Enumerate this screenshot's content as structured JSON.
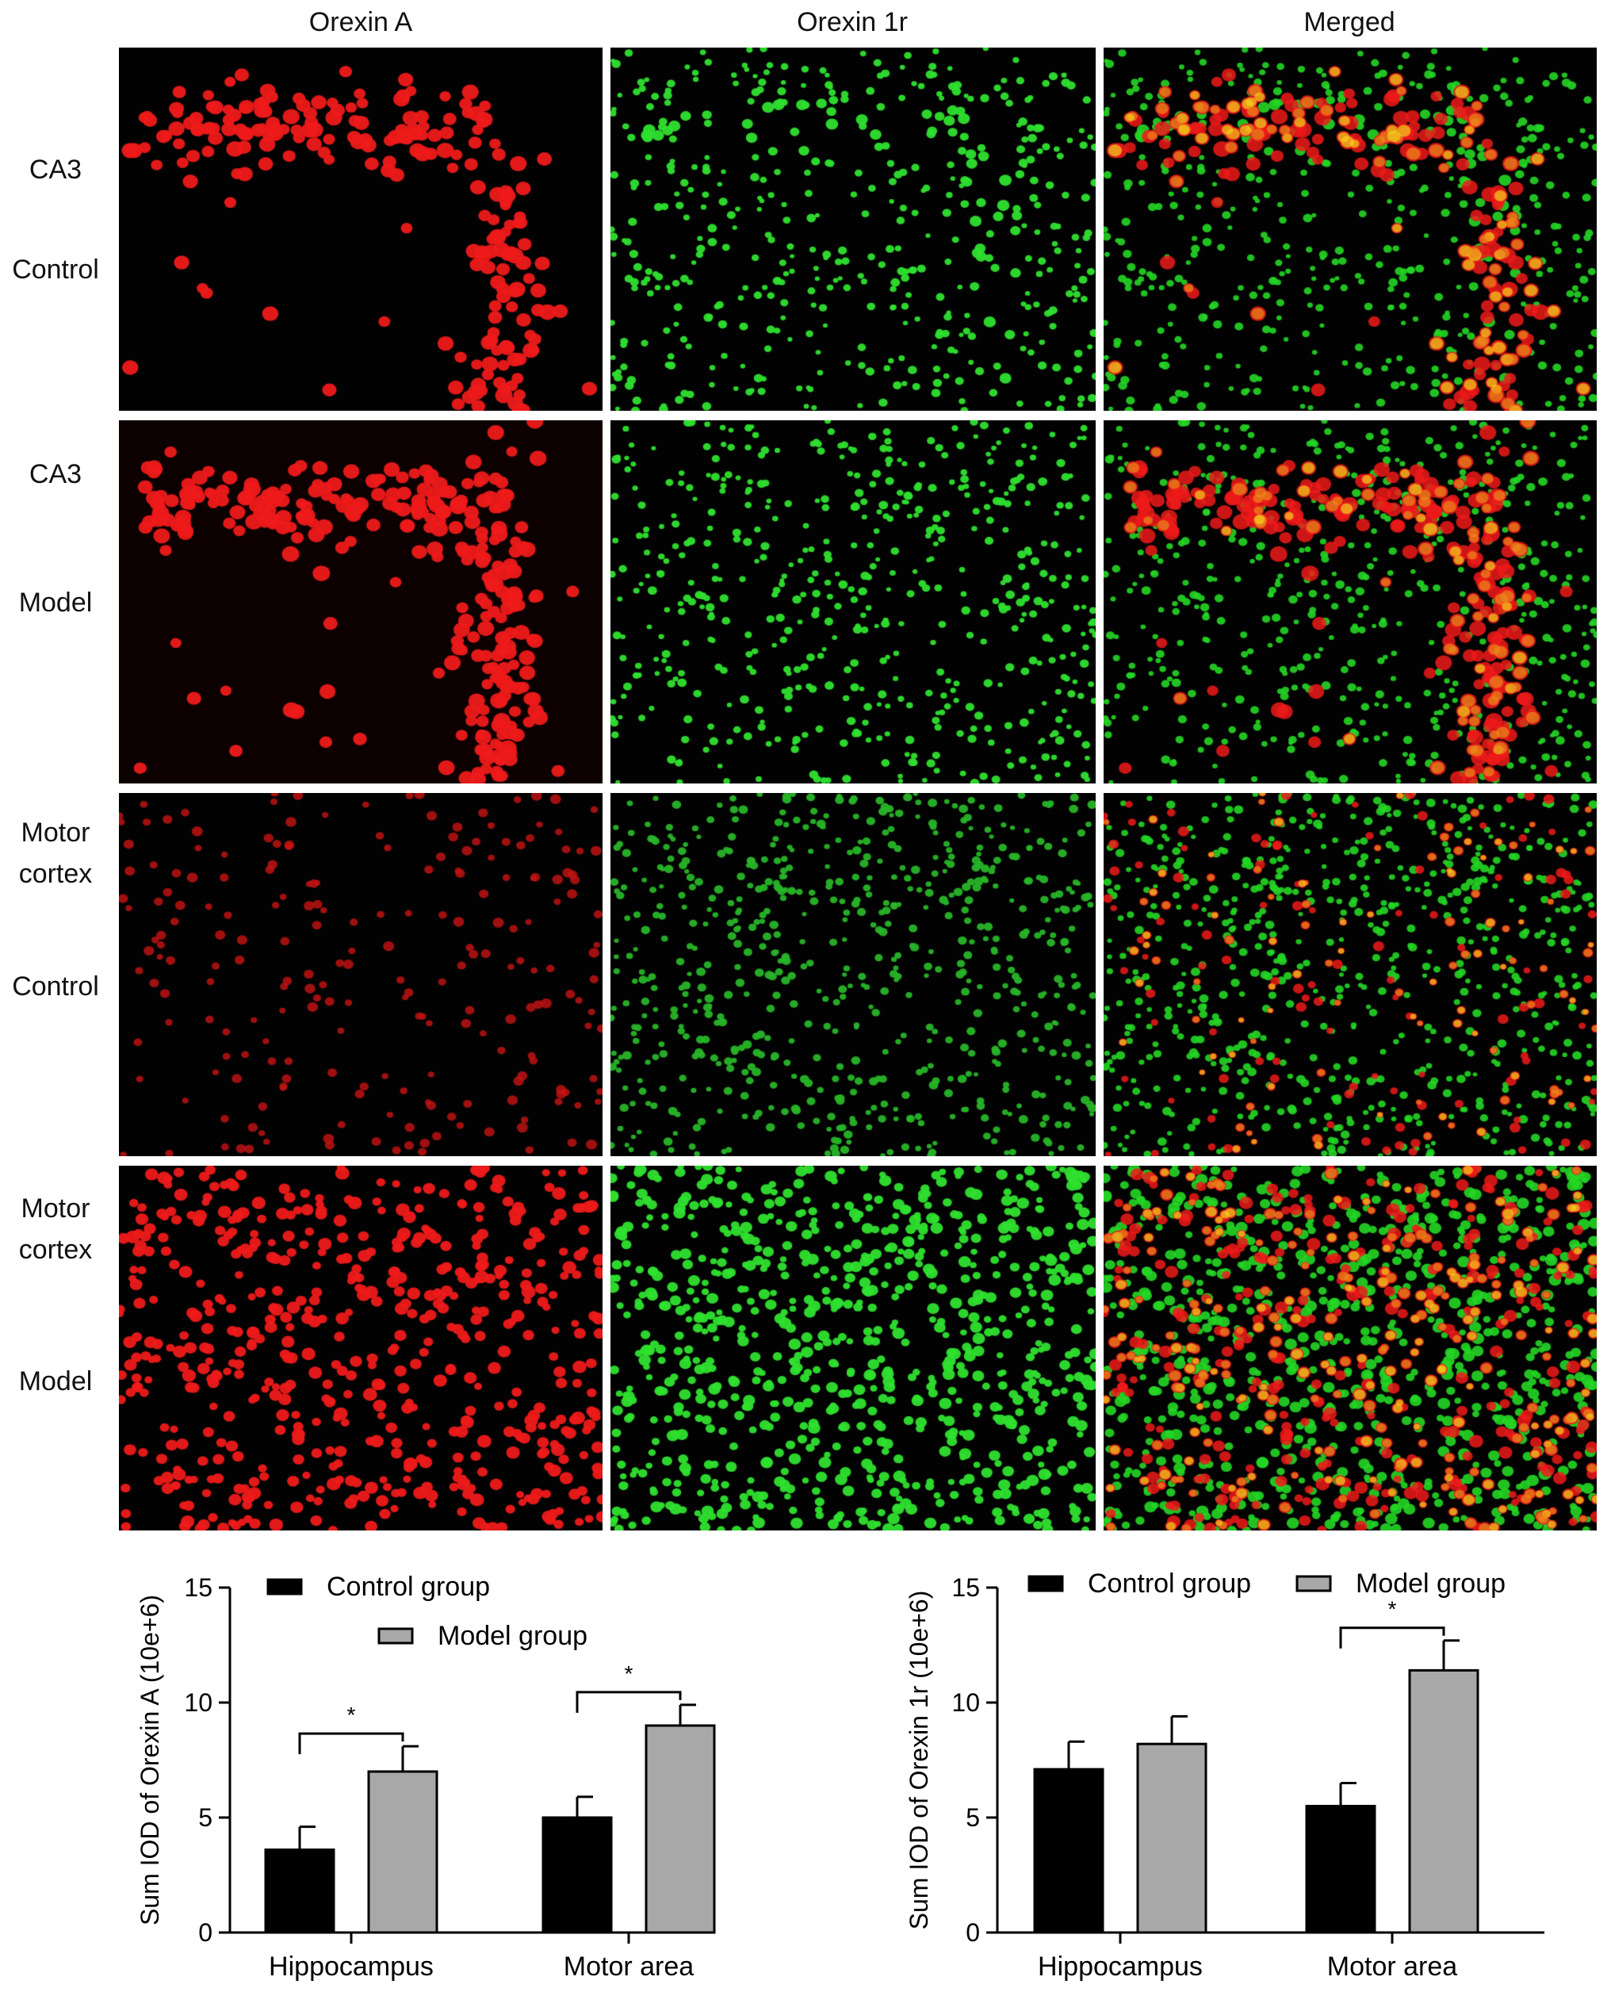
{
  "figure": {
    "columns": [
      "Orexin A",
      "Orexin 1r",
      "Merged"
    ],
    "rows": [
      {
        "region": "CA3",
        "group": "Control"
      },
      {
        "region": "CA3",
        "group": "Model"
      },
      {
        "region": "Motor\ncortex",
        "group": "Control"
      },
      {
        "region": "Motor\ncortex",
        "group": "Model"
      }
    ]
  },
  "chart_data": [
    {
      "type": "bar",
      "ylabel": "Sum IOD of Orexin A (10e+6)",
      "categories": [
        "Hippocampus",
        "Motor area"
      ],
      "ylim": [
        0,
        15
      ],
      "yticks": [
        0,
        5,
        10,
        15
      ],
      "series": [
        {
          "name": "Control group",
          "values": [
            3.6,
            5.0
          ],
          "errors": [
            1.0,
            0.9
          ],
          "color": "#000000"
        },
        {
          "name": "Model group",
          "values": [
            7.0,
            9.0
          ],
          "errors": [
            1.1,
            0.9
          ],
          "color": "#a8a8a8"
        }
      ],
      "significance": [
        {
          "category": "Hippocampus",
          "label": "*"
        },
        {
          "category": "Motor area",
          "label": "*"
        }
      ],
      "legend_position": "top (stacked)"
    },
    {
      "type": "bar",
      "ylabel": "Sum IOD of Orexin 1r (10e+6)",
      "categories": [
        "Hippocampus",
        "Motor area"
      ],
      "ylim": [
        0,
        15
      ],
      "yticks": [
        0,
        5,
        10,
        15
      ],
      "series": [
        {
          "name": "Control group",
          "values": [
            7.1,
            5.5
          ],
          "errors": [
            1.2,
            1.0
          ],
          "color": "#000000"
        },
        {
          "name": "Model group",
          "values": [
            8.2,
            11.4
          ],
          "errors": [
            1.2,
            1.3
          ],
          "color": "#a8a8a8"
        }
      ],
      "significance": [
        {
          "category": "Motor area",
          "label": "*"
        }
      ],
      "legend_position": "top (inline)"
    }
  ]
}
